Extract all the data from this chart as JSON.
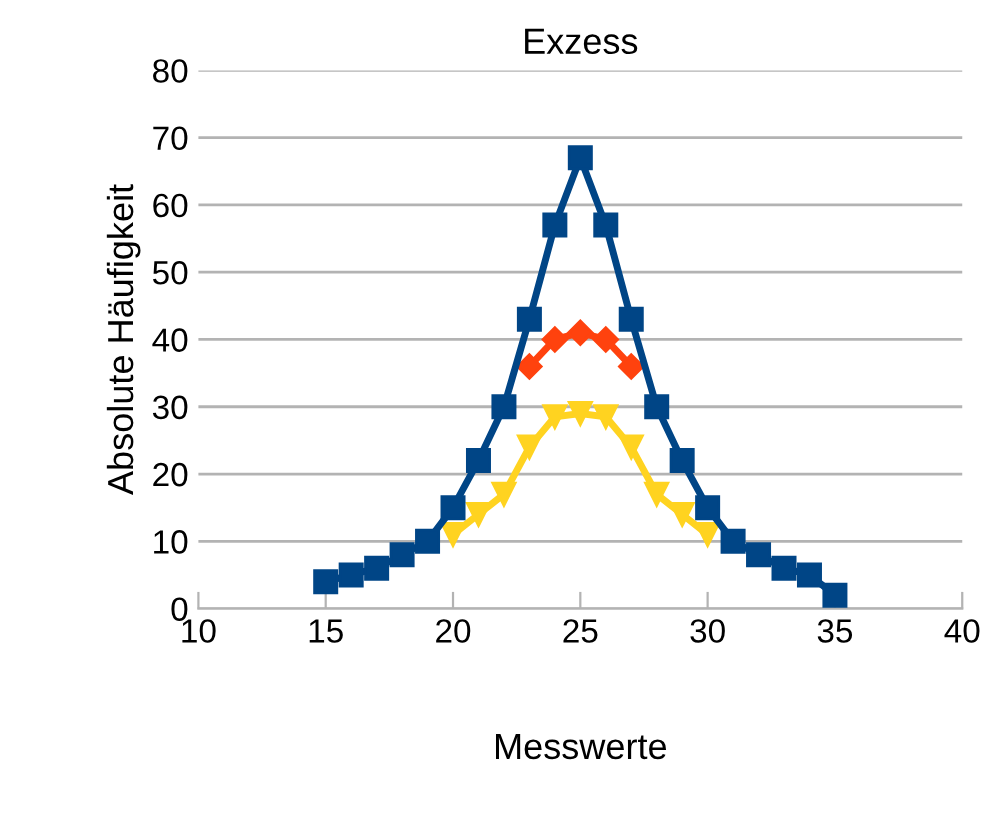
{
  "chart_data": {
    "type": "line",
    "title": "Exzess",
    "xlabel": "Messwerte",
    "ylabel": "Absolute Häufigkeit",
    "xlim": [
      10,
      40
    ],
    "xticks": [
      10,
      15,
      20,
      25,
      30,
      35,
      40
    ],
    "ylim": [
      0,
      80
    ],
    "yticks": [
      0,
      10,
      20,
      30,
      40,
      50,
      60,
      70,
      80
    ],
    "grid": "y",
    "series": [
      {
        "color": "#ffd320",
        "marker": "triangle",
        "x": [
          20,
          21,
          22,
          23,
          24,
          25,
          26,
          27,
          28,
          29,
          30
        ],
        "values": [
          11,
          14,
          17,
          24,
          28.5,
          29,
          28.5,
          24,
          17,
          14,
          11
        ]
      },
      {
        "color": "#ff420e",
        "marker": "diamond",
        "x": [
          23,
          24,
          25,
          26,
          27
        ],
        "values": [
          36,
          40,
          41,
          40,
          36
        ]
      },
      {
        "color": "#004586",
        "marker": "square",
        "x": [
          15,
          16,
          17,
          18,
          19,
          20,
          21,
          22,
          23,
          24,
          25,
          26,
          27,
          28,
          29,
          30,
          31,
          32,
          33,
          34,
          35
        ],
        "values": [
          4,
          5,
          6,
          8,
          10,
          15,
          22,
          30,
          43,
          57,
          67,
          57,
          43,
          30,
          22,
          15,
          10,
          8,
          6,
          5,
          2
        ]
      }
    ]
  }
}
